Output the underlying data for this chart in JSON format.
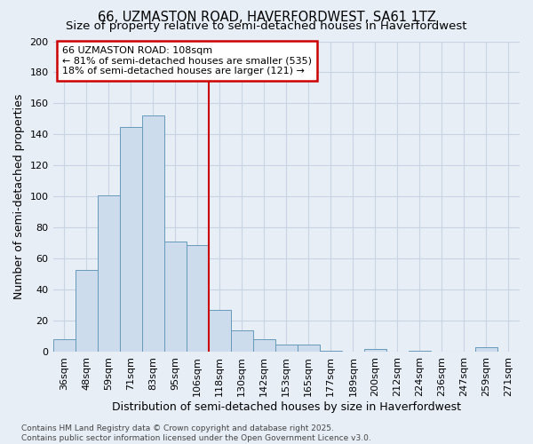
{
  "title_line1": "66, UZMASTON ROAD, HAVERFORDWEST, SA61 1TZ",
  "title_line2": "Size of property relative to semi-detached houses in Haverfordwest",
  "xlabel": "Distribution of semi-detached houses by size in Haverfordwest",
  "ylabel": "Number of semi-detached properties",
  "categories": [
    "36sqm",
    "48sqm",
    "59sqm",
    "71sqm",
    "83sqm",
    "95sqm",
    "106sqm",
    "118sqm",
    "130sqm",
    "142sqm",
    "153sqm",
    "165sqm",
    "177sqm",
    "189sqm",
    "200sqm",
    "212sqm",
    "224sqm",
    "236sqm",
    "247sqm",
    "259sqm",
    "271sqm"
  ],
  "values": [
    8,
    53,
    101,
    145,
    152,
    71,
    69,
    27,
    14,
    8,
    5,
    5,
    1,
    0,
    2,
    0,
    1,
    0,
    0,
    3,
    0
  ],
  "bar_color": "#ccdcec",
  "bar_edge_color": "#6699bb",
  "grid_color": "#c8d4e4",
  "background_color": "#e8eef6",
  "annotation_text": "66 UZMASTON ROAD: 108sqm\n← 81% of semi-detached houses are smaller (535)\n18% of semi-detached houses are larger (121) →",
  "vline_x_index": 6,
  "vline_color": "#cc0000",
  "annotation_box_color": "#cc0000",
  "ylim": [
    0,
    200
  ],
  "yticks": [
    0,
    20,
    40,
    60,
    80,
    100,
    120,
    140,
    160,
    180,
    200
  ],
  "footer_text": "Contains HM Land Registry data © Crown copyright and database right 2025.\nContains public sector information licensed under the Open Government Licence v3.0.",
  "title_fontsize": 10.5,
  "subtitle_fontsize": 9.5,
  "xlabel_fontsize": 9,
  "ylabel_fontsize": 9,
  "tick_fontsize": 8,
  "annotation_fontsize": 8,
  "footer_fontsize": 6.5
}
